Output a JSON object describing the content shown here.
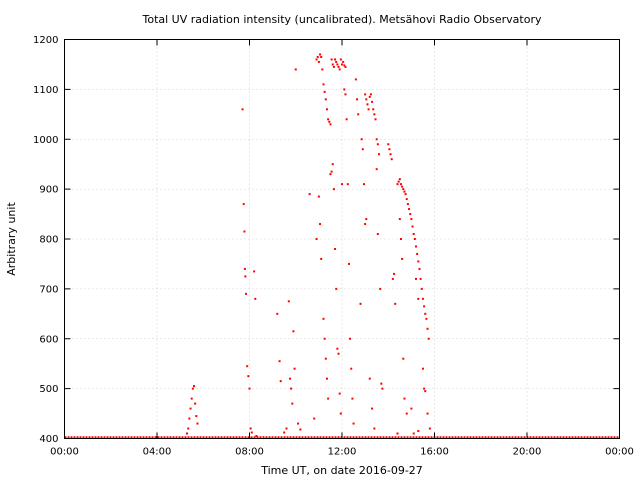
{
  "chart_data": {
    "type": "scatter",
    "title": "Total UV radiation intensity (uncalibrated). Metsähovi Radio Observatory",
    "xlabel": "Time UT, on date 2016-09-27",
    "ylabel": "Arbitrary unit",
    "xlim_hours": [
      0,
      24
    ],
    "ylim": [
      400,
      1200
    ],
    "x_ticks": [
      {
        "hours": 0,
        "label": "00:00"
      },
      {
        "hours": 4,
        "label": "04:00"
      },
      {
        "hours": 8,
        "label": "08:00"
      },
      {
        "hours": 12,
        "label": "12:00"
      },
      {
        "hours": 16,
        "label": "16:00"
      },
      {
        "hours": 20,
        "label": "20:00"
      },
      {
        "hours": 24,
        "label": "00:00"
      }
    ],
    "y_ticks": [
      400,
      500,
      600,
      700,
      800,
      900,
      1000,
      1100,
      1200
    ],
    "grid": true,
    "marker_color": "#ff0000",
    "baseline": {
      "value": 401,
      "from_hours": 0,
      "to_hours": 24
    },
    "series": [
      {
        "points": [
          [
            5.3,
            410
          ],
          [
            5.35,
            420
          ],
          [
            5.4,
            440
          ],
          [
            5.45,
            460
          ],
          [
            5.5,
            480
          ],
          [
            5.55,
            500
          ],
          [
            5.6,
            505
          ],
          [
            5.65,
            470
          ],
          [
            5.7,
            445
          ],
          [
            5.75,
            430
          ],
          [
            7.7,
            1060
          ],
          [
            7.75,
            870
          ],
          [
            7.78,
            815
          ],
          [
            7.8,
            740
          ],
          [
            7.82,
            725
          ],
          [
            7.85,
            690
          ],
          [
            7.9,
            545
          ],
          [
            7.95,
            525
          ],
          [
            8.0,
            500
          ],
          [
            8.05,
            420
          ],
          [
            8.1,
            412
          ],
          [
            8.2,
            735
          ],
          [
            8.25,
            680
          ],
          [
            8.3,
            405
          ],
          [
            9.2,
            650
          ],
          [
            9.3,
            555
          ],
          [
            9.35,
            515
          ],
          [
            9.7,
            675
          ],
          [
            9.75,
            520
          ],
          [
            9.8,
            500
          ],
          [
            9.85,
            470
          ],
          [
            9.9,
            615
          ],
          [
            9.95,
            540
          ],
          [
            10.0,
            1140
          ],
          [
            10.1,
            430
          ],
          [
            9.5,
            412
          ],
          [
            9.6,
            420
          ],
          [
            10.2,
            418
          ],
          [
            10.6,
            890
          ],
          [
            10.8,
            440
          ],
          [
            10.9,
            800
          ],
          [
            11.0,
            885
          ],
          [
            11.05,
            830
          ],
          [
            11.1,
            760
          ],
          [
            11.2,
            640
          ],
          [
            11.25,
            600
          ],
          [
            11.3,
            560
          ],
          [
            11.35,
            520
          ],
          [
            11.4,
            480
          ],
          [
            10.9,
            1160
          ],
          [
            10.95,
            1165
          ],
          [
            11.0,
            1155
          ],
          [
            11.05,
            1170
          ],
          [
            11.1,
            1165
          ],
          [
            11.15,
            1140
          ],
          [
            11.2,
            1110
          ],
          [
            11.25,
            1095
          ],
          [
            11.3,
            1080
          ],
          [
            11.35,
            1060
          ],
          [
            11.4,
            1040
          ],
          [
            11.45,
            1035
          ],
          [
            11.5,
            1030
          ],
          [
            11.55,
            1160
          ],
          [
            11.6,
            1150
          ],
          [
            11.65,
            1145
          ],
          [
            11.7,
            1160
          ],
          [
            11.75,
            1155
          ],
          [
            11.8,
            1150
          ],
          [
            11.85,
            1145
          ],
          [
            11.9,
            1140
          ],
          [
            11.95,
            1160
          ],
          [
            12.0,
            1150
          ],
          [
            12.05,
            1155
          ],
          [
            12.1,
            1148
          ],
          [
            12.15,
            1145
          ],
          [
            11.5,
            930
          ],
          [
            11.55,
            935
          ],
          [
            11.6,
            950
          ],
          [
            11.65,
            900
          ],
          [
            11.7,
            780
          ],
          [
            11.75,
            700
          ],
          [
            11.8,
            580
          ],
          [
            11.85,
            570
          ],
          [
            11.9,
            490
          ],
          [
            11.95,
            450
          ],
          [
            12.0,
            910
          ],
          [
            12.1,
            1100
          ],
          [
            12.15,
            1090
          ],
          [
            12.2,
            1040
          ],
          [
            12.25,
            910
          ],
          [
            12.3,
            750
          ],
          [
            12.35,
            600
          ],
          [
            12.4,
            540
          ],
          [
            12.45,
            480
          ],
          [
            12.5,
            430
          ],
          [
            12.6,
            1120
          ],
          [
            12.65,
            1080
          ],
          [
            12.7,
            1050
          ],
          [
            12.8,
            670
          ],
          [
            12.85,
            1000
          ],
          [
            12.9,
            980
          ],
          [
            12.95,
            910
          ],
          [
            13.0,
            830
          ],
          [
            13.05,
            840
          ],
          [
            13.0,
            1090
          ],
          [
            13.05,
            1080
          ],
          [
            13.1,
            1070
          ],
          [
            13.15,
            1060
          ],
          [
            13.2,
            1085
          ],
          [
            13.25,
            1090
          ],
          [
            13.3,
            1075
          ],
          [
            13.35,
            1060
          ],
          [
            13.4,
            1050
          ],
          [
            13.45,
            1040
          ],
          [
            13.5,
            1000
          ],
          [
            13.55,
            990
          ],
          [
            13.6,
            970
          ],
          [
            13.2,
            520
          ],
          [
            13.3,
            460
          ],
          [
            13.4,
            420
          ],
          [
            13.5,
            940
          ],
          [
            13.55,
            810
          ],
          [
            13.65,
            700
          ],
          [
            13.7,
            510
          ],
          [
            13.75,
            500
          ],
          [
            14.0,
            990
          ],
          [
            14.05,
            980
          ],
          [
            14.1,
            970
          ],
          [
            14.15,
            960
          ],
          [
            14.2,
            720
          ],
          [
            14.25,
            730
          ],
          [
            14.3,
            670
          ],
          [
            14.5,
            840
          ],
          [
            14.55,
            800
          ],
          [
            14.6,
            760
          ],
          [
            14.65,
            560
          ],
          [
            14.7,
            480
          ],
          [
            14.4,
            910
          ],
          [
            14.45,
            915
          ],
          [
            14.5,
            920
          ],
          [
            14.55,
            910
          ],
          [
            14.6,
            905
          ],
          [
            14.65,
            900
          ],
          [
            14.7,
            895
          ],
          [
            14.75,
            890
          ],
          [
            14.8,
            880
          ],
          [
            14.85,
            870
          ],
          [
            14.9,
            860
          ],
          [
            14.95,
            850
          ],
          [
            15.0,
            840
          ],
          [
            15.05,
            825
          ],
          [
            15.1,
            810
          ],
          [
            15.15,
            800
          ],
          [
            15.2,
            785
          ],
          [
            15.25,
            770
          ],
          [
            15.3,
            755
          ],
          [
            15.35,
            740
          ],
          [
            15.4,
            720
          ],
          [
            15.45,
            700
          ],
          [
            15.5,
            680
          ],
          [
            15.55,
            665
          ],
          [
            15.6,
            650
          ],
          [
            15.65,
            640
          ],
          [
            15.7,
            620
          ],
          [
            15.75,
            600
          ],
          [
            15.2,
            720
          ],
          [
            15.3,
            680
          ],
          [
            15.5,
            540
          ],
          [
            15.55,
            500
          ],
          [
            15.6,
            495
          ],
          [
            15.7,
            450
          ],
          [
            15.8,
            420
          ],
          [
            14.4,
            410
          ],
          [
            14.8,
            450
          ],
          [
            15.0,
            460
          ],
          [
            15.1,
            410
          ],
          [
            15.3,
            415
          ]
        ]
      }
    ]
  }
}
